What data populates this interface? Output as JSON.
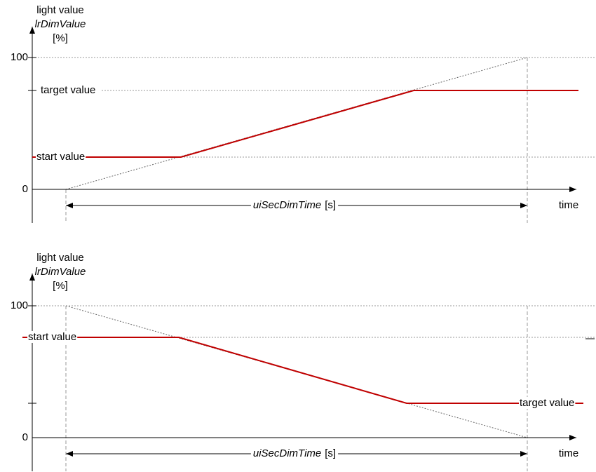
{
  "panels": [
    {
      "y_axis": {
        "lines": [
          "light value",
          "lrDimValue",
          "[%]"
        ],
        "ticks": [
          "100",
          "0"
        ]
      },
      "start_label": "start value",
      "target_label": "target value",
      "duration": {
        "name": "uiSecDimTime",
        "unit": "[s]"
      },
      "x_axis_label": "time"
    },
    {
      "y_axis": {
        "lines": [
          "light value",
          "lrDimValue",
          "[%]"
        ],
        "ticks": [
          "100",
          "0"
        ]
      },
      "start_label": "start value",
      "target_label": "target value",
      "duration": {
        "name": "uiSecDimTime",
        "unit": "[s]"
      },
      "x_axis_label": "time"
    }
  ]
}
